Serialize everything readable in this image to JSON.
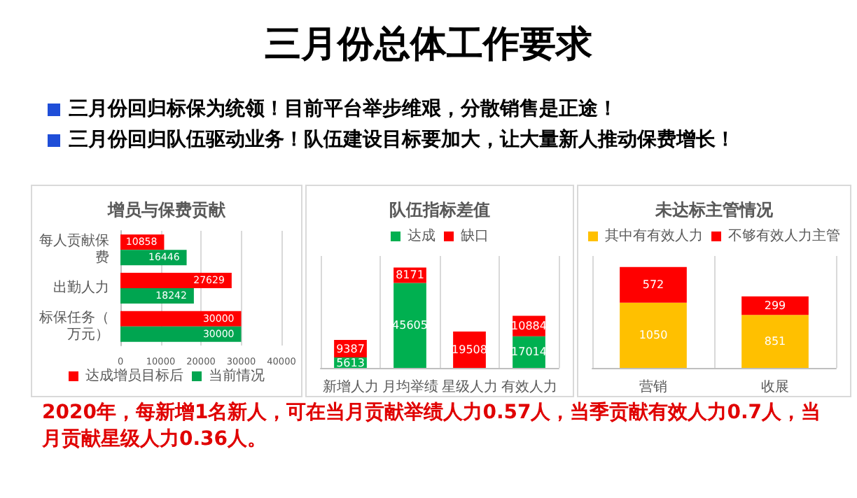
{
  "chart_data": [
    {
      "type": "other",
      "title": "三月份总体工作要求",
      "annotations": [
        "三月份回归标保为统领！目前平台举步维艰，分散销售是正途！",
        "三月份回归队伍驱动业务！队伍建设目标要加大，让大量新人推动保费增长！"
      ]
    },
    {
      "type": "bar",
      "title": "增员与保费贡献",
      "orientation": "horizontal",
      "categories": [
        "每人贡献保费",
        "出勤人力",
        "标保任务（万元）"
      ],
      "series": [
        {
          "name": "达成增员目标后",
          "color": "#ff0000",
          "values": [
            10858,
            27629,
            30000
          ]
        },
        {
          "name": "当前情况",
          "color": "#00a550",
          "values": [
            16446,
            18242,
            30000
          ]
        }
      ],
      "xlim": [
        0,
        40000
      ],
      "xticks": [
        0,
        10000,
        20000,
        30000,
        40000
      ],
      "grid": "x",
      "legend": "bottom",
      "data_labels": true
    },
    {
      "type": "bar",
      "title": "队伍指标差值",
      "stacked": true,
      "categories": [
        "新增人力",
        "月均举绩",
        "星级人力",
        "有效人力"
      ],
      "series": [
        {
          "name": "达成",
          "color": "#00b050",
          "values": [
            5613,
            45605,
            null,
            17014
          ]
        },
        {
          "name": "缺口",
          "color": "#ff0000",
          "values": [
            9387,
            8171,
            19508,
            10884
          ]
        }
      ],
      "grid": "x",
      "legend": "top",
      "data_labels": true
    },
    {
      "type": "bar",
      "title": "未达标主管情况",
      "stacked": true,
      "categories": [
        "营销",
        "收展"
      ],
      "series": [
        {
          "name": "其中有有效人力",
          "color": "#ffc000",
          "values": [
            1050,
            851
          ]
        },
        {
          "name": "不够有效人力主管",
          "color": "#ff0000",
          "values": [
            572,
            299
          ]
        }
      ],
      "grid": "x",
      "legend": "top",
      "data_labels": true
    },
    {
      "type": "other",
      "annotations": [
        "2020年，每新增1名新人，可在当月贡献举绩人力0.57人，当季贡献有效人力0.7人，当月贡献星级人力0.36人。"
      ]
    }
  ]
}
